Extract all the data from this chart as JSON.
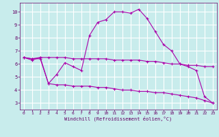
{
  "xlabel": "Windchill (Refroidissement éolien,°C)",
  "bg_color": "#c8ecec",
  "grid_color": "#ffffff",
  "line_color": "#aa00aa",
  "xlim": [
    -0.5,
    23.5
  ],
  "ylim": [
    2.5,
    10.7
  ],
  "yticks": [
    3,
    4,
    5,
    6,
    7,
    8,
    9,
    10
  ],
  "xticks": [
    0,
    1,
    2,
    3,
    4,
    5,
    6,
    7,
    8,
    9,
    10,
    11,
    12,
    13,
    14,
    15,
    16,
    17,
    18,
    19,
    20,
    21,
    22,
    23
  ],
  "series": [
    {
      "x": [
        0,
        1,
        2,
        3,
        4,
        5,
        6,
        7,
        8,
        9,
        10,
        11,
        12,
        13,
        14,
        15,
        16,
        17,
        18,
        19,
        20,
        21,
        22,
        23
      ],
      "y": [
        6.5,
        6.3,
        6.5,
        4.5,
        5.2,
        6.1,
        5.8,
        5.5,
        8.2,
        9.2,
        9.4,
        10.0,
        10.0,
        9.9,
        10.2,
        9.5,
        8.5,
        7.5,
        7.0,
        6.0,
        5.8,
        5.5,
        3.5,
        3.0
      ]
    },
    {
      "x": [
        0,
        1,
        2,
        3,
        4,
        5,
        6,
        7,
        8,
        9,
        10,
        11,
        12,
        13,
        14,
        15,
        16,
        17,
        18,
        19,
        20,
        21,
        22,
        23
      ],
      "y": [
        6.5,
        6.4,
        6.5,
        6.5,
        6.5,
        6.5,
        6.4,
        6.4,
        6.4,
        6.4,
        6.4,
        6.3,
        6.3,
        6.3,
        6.3,
        6.2,
        6.2,
        6.1,
        6.0,
        6.0,
        5.9,
        5.9,
        5.8,
        5.8
      ]
    },
    {
      "x": [
        0,
        1,
        2,
        3,
        4,
        5,
        6,
        7,
        8,
        9,
        10,
        11,
        12,
        13,
        14,
        15,
        16,
        17,
        18,
        19,
        20,
        21,
        22,
        23
      ],
      "y": [
        6.5,
        6.4,
        6.4,
        4.5,
        4.4,
        4.4,
        4.3,
        4.3,
        4.3,
        4.2,
        4.2,
        4.1,
        4.0,
        4.0,
        3.9,
        3.9,
        3.8,
        3.8,
        3.7,
        3.6,
        3.5,
        3.4,
        3.2,
        3.0
      ]
    }
  ]
}
